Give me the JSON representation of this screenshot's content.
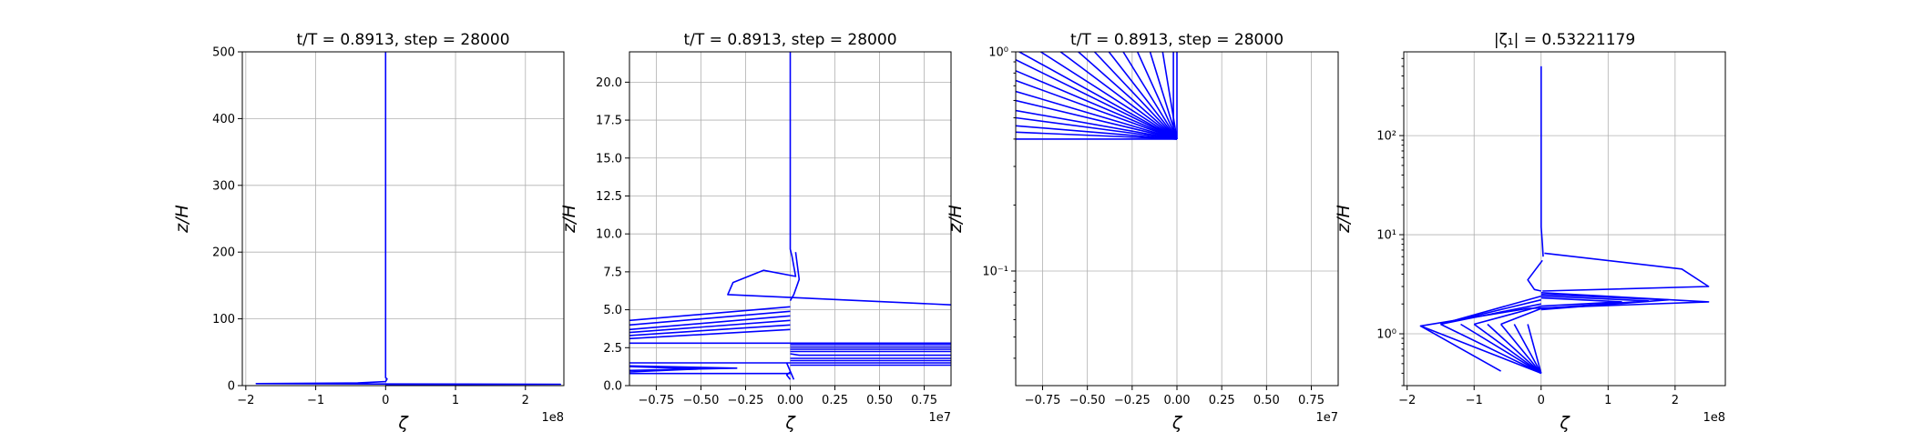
{
  "figure": {
    "panels_label": "four subplots of the same vertical profile",
    "line_color": "#0000ff"
  },
  "chart_data": [
    {
      "type": "line",
      "title": "t/T = 0.8913, step = 28000",
      "xlabel": "ζ",
      "ylabel": "z/H",
      "x_offset_label": "1e8",
      "xscale": "linear",
      "yscale": "linear",
      "xlim": [
        -2.05,
        2.55
      ],
      "ylim": [
        0,
        500
      ],
      "xticks": [
        -2,
        -1,
        0,
        1,
        2
      ],
      "xtick_labels": [
        "−2",
        "−1",
        "0",
        "1",
        "2"
      ],
      "yticks": [
        0,
        100,
        200,
        300,
        400,
        500
      ],
      "ytick_labels": [
        "0",
        "100",
        "200",
        "300",
        "400",
        "500"
      ],
      "grid": true,
      "series": [
        {
          "x": [
            0,
            0,
            0.02,
            0.01,
            0,
            -0.4,
            -1.85,
            0,
            2.5,
            0.1,
            0
          ],
          "y": [
            500,
            12,
            10,
            8,
            6,
            4,
            3,
            2.5,
            2,
            1.5,
            0.4
          ]
        }
      ]
    },
    {
      "type": "line",
      "title": "t/T = 0.8913, step = 28000",
      "xlabel": "ζ",
      "ylabel": "z/H",
      "x_offset_label": "1e7",
      "xscale": "linear",
      "yscale": "linear",
      "xlim": [
        -0.9,
        0.9
      ],
      "ylim": [
        0,
        22
      ],
      "xticks": [
        -0.75,
        -0.5,
        -0.25,
        0,
        0.25,
        0.5,
        0.75
      ],
      "xtick_labels": [
        "−0.75",
        "−0.50",
        "−0.25",
        "0.00",
        "0.25",
        "0.50",
        "0.75"
      ],
      "yticks": [
        0,
        2.5,
        5,
        7.5,
        10,
        12.5,
        15,
        17.5,
        20
      ],
      "ytick_labels": [
        "0.0",
        "2.5",
        "5.0",
        "7.5",
        "10.0",
        "12.5",
        "15.0",
        "17.5",
        "20.0"
      ],
      "grid": true,
      "series": [
        {
          "x": [
            0,
            0,
            0.01,
            0.03,
            -0.15,
            -0.32,
            -0.35,
            0.95
          ],
          "y": [
            22,
            9,
            8.5,
            7.2,
            7.6,
            6.8,
            6.0,
            5.3
          ]
        },
        {
          "x": [
            0.03,
            0.05,
            0.02,
            0
          ],
          "y": [
            8.8,
            7.0,
            6.0,
            5.6
          ]
        },
        {
          "x": [
            0,
            -0.9
          ],
          "y": [
            5.2,
            4.3
          ]
        },
        {
          "x": [
            0,
            -0.9
          ],
          "y": [
            4.9,
            4.0
          ]
        },
        {
          "x": [
            0,
            -0.9
          ],
          "y": [
            4.6,
            3.7
          ]
        },
        {
          "x": [
            0,
            -0.9
          ],
          "y": [
            4.3,
            3.5
          ]
        },
        {
          "x": [
            0,
            -0.9
          ],
          "y": [
            4.0,
            3.3
          ]
        },
        {
          "x": [
            0,
            -0.9
          ],
          "y": [
            3.7,
            3.1
          ]
        },
        {
          "x": [
            -0.9,
            0.9
          ],
          "y": [
            2.8,
            2.8
          ]
        },
        {
          "x": [
            0,
            0.9
          ],
          "y": [
            2.7,
            2.7
          ]
        },
        {
          "x": [
            0,
            0.9
          ],
          "y": [
            2.55,
            2.55
          ]
        },
        {
          "x": [
            0,
            0.9
          ],
          "y": [
            2.4,
            2.4
          ]
        },
        {
          "x": [
            0,
            0.9
          ],
          "y": [
            2.25,
            2.25
          ]
        },
        {
          "x": [
            0,
            0.05,
            0.9
          ],
          "y": [
            2.1,
            2.0,
            2.0
          ]
        },
        {
          "x": [
            0,
            0.9
          ],
          "y": [
            1.8,
            1.8
          ]
        },
        {
          "x": [
            0,
            0.9
          ],
          "y": [
            1.65,
            1.65
          ]
        },
        {
          "x": [
            0,
            0.9
          ],
          "y": [
            1.5,
            1.5
          ]
        },
        {
          "x": [
            0,
            0.9
          ],
          "y": [
            1.35,
            1.35
          ]
        },
        {
          "x": [
            -0.9,
            0
          ],
          "y": [
            1.5,
            1.5
          ]
        },
        {
          "x": [
            -0.9,
            -0.3,
            -0.9
          ],
          "y": [
            1.3,
            1.15,
            1.0
          ]
        },
        {
          "x": [
            -0.9,
            -0.5,
            -0.9
          ],
          "y": [
            1.25,
            1.1,
            0.9
          ]
        },
        {
          "x": [
            -0.9,
            0
          ],
          "y": [
            0.8,
            0.8
          ]
        },
        {
          "x": [
            0,
            -0.02,
            0
          ],
          "y": [
            0.9,
            0.7,
            0.4
          ]
        },
        {
          "x": [
            -0.02,
            0.02
          ],
          "y": [
            1.5,
            0.4
          ]
        }
      ]
    },
    {
      "type": "line",
      "title": "t/T = 0.8913, step = 28000",
      "xlabel": "ζ",
      "ylabel": "z/H",
      "x_offset_label": "1e7",
      "xscale": "linear",
      "yscale": "log",
      "xlim": [
        -0.9,
        0.9
      ],
      "ylim": [
        0.03,
        1
      ],
      "xticks": [
        -0.75,
        -0.5,
        -0.25,
        0,
        0.25,
        0.5,
        0.75
      ],
      "xtick_labels": [
        "−0.75",
        "−0.50",
        "−0.25",
        "0.00",
        "0.25",
        "0.50",
        "0.75"
      ],
      "yticks": [
        0.1,
        1
      ],
      "ytick_labels": [
        "10⁻¹",
        "10⁰"
      ],
      "grid": true,
      "series": [
        {
          "x": [
            0,
            0
          ],
          "y": [
            1,
            0.4
          ]
        },
        {
          "x": [
            -0.02,
            -0.02
          ],
          "y": [
            1,
            0.4
          ]
        },
        {
          "x": [
            -0.08,
            0
          ],
          "y": [
            1,
            0.4
          ]
        },
        {
          "x": [
            -0.15,
            0
          ],
          "y": [
            1,
            0.4
          ]
        },
        {
          "x": [
            -0.22,
            0
          ],
          "y": [
            1,
            0.4
          ]
        },
        {
          "x": [
            -0.3,
            0
          ],
          "y": [
            1,
            0.4
          ]
        },
        {
          "x": [
            -0.38,
            0
          ],
          "y": [
            1,
            0.4
          ]
        },
        {
          "x": [
            -0.46,
            0
          ],
          "y": [
            1,
            0.4
          ]
        },
        {
          "x": [
            -0.55,
            0
          ],
          "y": [
            1,
            0.4
          ]
        },
        {
          "x": [
            -0.65,
            0
          ],
          "y": [
            1,
            0.4
          ]
        },
        {
          "x": [
            -0.76,
            0
          ],
          "y": [
            1,
            0.4
          ]
        },
        {
          "x": [
            -0.88,
            0
          ],
          "y": [
            1,
            0.4
          ]
        },
        {
          "x": [
            -0.9,
            0
          ],
          "y": [
            0.92,
            0.4
          ]
        },
        {
          "x": [
            -0.9,
            0
          ],
          "y": [
            0.82,
            0.4
          ]
        },
        {
          "x": [
            -0.9,
            0
          ],
          "y": [
            0.74,
            0.4
          ]
        },
        {
          "x": [
            -0.9,
            0
          ],
          "y": [
            0.66,
            0.4
          ]
        },
        {
          "x": [
            -0.9,
            0
          ],
          "y": [
            0.6,
            0.4
          ]
        },
        {
          "x": [
            -0.9,
            0
          ],
          "y": [
            0.54,
            0.4
          ]
        },
        {
          "x": [
            -0.9,
            0
          ],
          "y": [
            0.5,
            0.4
          ]
        },
        {
          "x": [
            -0.9,
            0
          ],
          "y": [
            0.46,
            0.4
          ]
        },
        {
          "x": [
            -0.9,
            0
          ],
          "y": [
            0.43,
            0.4
          ]
        },
        {
          "x": [
            -0.9,
            0
          ],
          "y": [
            0.4,
            0.4
          ]
        }
      ]
    },
    {
      "type": "line",
      "title": "|ζ₁| = 0.53221179",
      "xlabel": "ζ",
      "ylabel": "z/H",
      "x_offset_label": "1e8",
      "xscale": "linear",
      "yscale": "log",
      "xlim": [
        -2.05,
        2.75
      ],
      "ylim": [
        0.3,
        700
      ],
      "xticks": [
        -2,
        -1,
        0,
        1,
        2
      ],
      "xtick_labels": [
        "−2",
        "−1",
        "0",
        "1",
        "2"
      ],
      "yticks": [
        1,
        10,
        100
      ],
      "ytick_labels": [
        "10⁰",
        "10¹",
        "10²"
      ],
      "grid": true,
      "series": [
        {
          "x": [
            0,
            0,
            0.02,
            0.03
          ],
          "y": [
            500,
            12,
            8,
            6
          ]
        },
        {
          "x": [
            0.05,
            2.1,
            2.5,
            0.02
          ],
          "y": [
            6.5,
            4.5,
            3.0,
            2.7
          ]
        },
        {
          "x": [
            0.02,
            -0.2,
            -0.1,
            0
          ],
          "y": [
            5.5,
            3.5,
            2.8,
            2.7
          ]
        },
        {
          "x": [
            0,
            2.5,
            -0.2,
            -1.8,
            0
          ],
          "y": [
            2.6,
            2.1,
            1.8,
            1.2,
            0.4
          ]
        },
        {
          "x": [
            -1.8,
            -0.6
          ],
          "y": [
            1.2,
            0.42
          ]
        },
        {
          "x": [
            0,
            1.2,
            0
          ],
          "y": [
            2.3,
            2.1,
            1.9
          ]
        },
        {
          "x": [
            0,
            1.6,
            0
          ],
          "y": [
            2.4,
            2.15,
            1.8
          ]
        },
        {
          "x": [
            0,
            1.9,
            0
          ],
          "y": [
            2.5,
            2.2,
            1.75
          ]
        },
        {
          "x": [
            -1.5,
            0
          ],
          "y": [
            1.25,
            2.4
          ]
        },
        {
          "x": [
            -1.5,
            0
          ],
          "y": [
            1.25,
            2.2
          ]
        },
        {
          "x": [
            -1.5,
            0
          ],
          "y": [
            1.25,
            2.0
          ]
        },
        {
          "x": [
            -1.5,
            0
          ],
          "y": [
            1.25,
            0.4
          ]
        },
        {
          "x": [
            -1.2,
            0
          ],
          "y": [
            1.25,
            0.4
          ]
        },
        {
          "x": [
            -1.0,
            0
          ],
          "y": [
            1.25,
            0.4
          ]
        },
        {
          "x": [
            -0.8,
            0
          ],
          "y": [
            1.25,
            0.4
          ]
        },
        {
          "x": [
            -0.6,
            0
          ],
          "y": [
            1.25,
            0.4
          ]
        },
        {
          "x": [
            -0.4,
            0
          ],
          "y": [
            1.25,
            0.4
          ]
        },
        {
          "x": [
            -0.2,
            0
          ],
          "y": [
            1.25,
            0.4
          ]
        },
        {
          "x": [
            -1.0,
            0
          ],
          "y": [
            1.25,
            1.9
          ]
        },
        {
          "x": [
            -0.6,
            0
          ],
          "y": [
            1.25,
            1.8
          ]
        }
      ]
    }
  ]
}
